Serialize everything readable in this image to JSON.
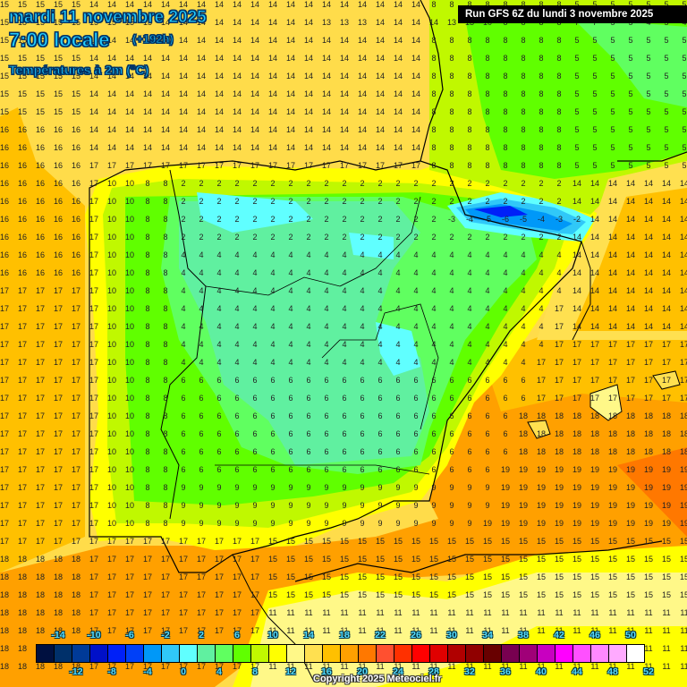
{
  "header": {
    "date": "mardi 11 novembre 2025",
    "time": "7:00 locale",
    "lead": "(+192h)",
    "variable": "Températures à 2m (°C)",
    "run": "Run GFS 6Z du lundi 3 novembre 2025"
  },
  "footer": {
    "copyright": "Copyright 2025 Meteociel.fr"
  },
  "colorbar": {
    "top_labels": [
      "-14",
      "-10",
      "-6",
      "-2",
      "2",
      "6",
      "10",
      "14",
      "18",
      "22",
      "26",
      "30",
      "34",
      "38",
      "42",
      "46",
      "50"
    ],
    "bottom_labels": [
      "-12",
      "-8",
      "-4",
      "0",
      "4",
      "8",
      "12",
      "16",
      "20",
      "24",
      "28",
      "32",
      "36",
      "40",
      "44",
      "48",
      "52"
    ],
    "colors": [
      "#001040",
      "#00306a",
      "#003a98",
      "#0010c8",
      "#0020f8",
      "#0040f8",
      "#0098f8",
      "#30c8f8",
      "#60ffff",
      "#60f0a0",
      "#60ff60",
      "#60ff00",
      "#c0f800",
      "#ffff00",
      "#fff888",
      "#ffe050",
      "#ffc000",
      "#ffa000",
      "#ff7800",
      "#ff5030",
      "#ff3000",
      "#ff0000",
      "#e00000",
      "#b00000",
      "#900000",
      "#680000",
      "#780050",
      "#a00078",
      "#c800c0",
      "#ff00ff",
      "#ff50ff",
      "#ff88ff",
      "#ffaaff",
      "#ffffff"
    ]
  },
  "map": {
    "region": "Iberian Peninsula",
    "sample_values": {
      "row_y22": [
        "15",
        "15",
        "15",
        "15",
        "15",
        "15",
        "15",
        "15",
        "15",
        "14",
        "14",
        "14",
        "14",
        "14",
        "14",
        "14",
        "14",
        "14",
        "13",
        "13",
        "13",
        "14",
        "14",
        "14",
        "14",
        "13",
        "13",
        "10",
        "8",
        "8",
        "8",
        "8",
        "7",
        "7",
        "5",
        "5",
        "4",
        "5",
        "4",
        "6",
        "6"
      ],
      "pyrenees_min": "-6",
      "balearics": [
        "17",
        "15",
        "16",
        "11",
        "13",
        "15",
        "17",
        "15"
      ],
      "mediterranean_max": "20"
    }
  }
}
